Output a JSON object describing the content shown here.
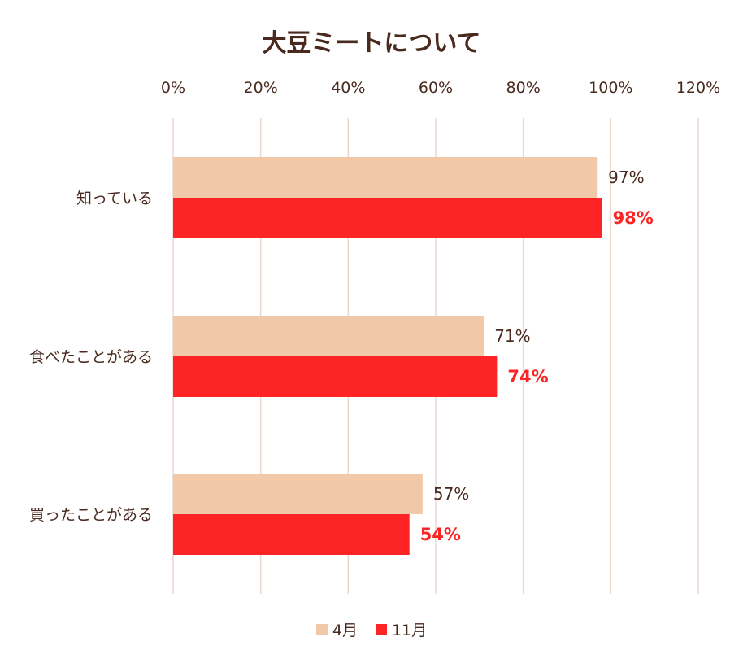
{
  "chart_data": {
    "type": "bar",
    "orientation": "horizontal",
    "title": "大豆ミートについて",
    "categories": [
      "知っている",
      "食べたことがある",
      "買ったことがある"
    ],
    "series": [
      {
        "name": "4月",
        "values": [
          97,
          71,
          57
        ],
        "labels": [
          "97%",
          "71%",
          "57%"
        ],
        "color": "#f2c9a8"
      },
      {
        "name": "11月",
        "values": [
          98,
          74,
          54
        ],
        "labels": [
          "98%",
          "74%",
          "54%"
        ],
        "color": "#fc2424"
      }
    ],
    "xlim": [
      0,
      120
    ],
    "x_ticks": [
      "0%",
      "20%",
      "40%",
      "60%",
      "80%",
      "100%",
      "120%"
    ],
    "x_axis_position": "top",
    "grid": true,
    "legend_position": "bottom"
  }
}
